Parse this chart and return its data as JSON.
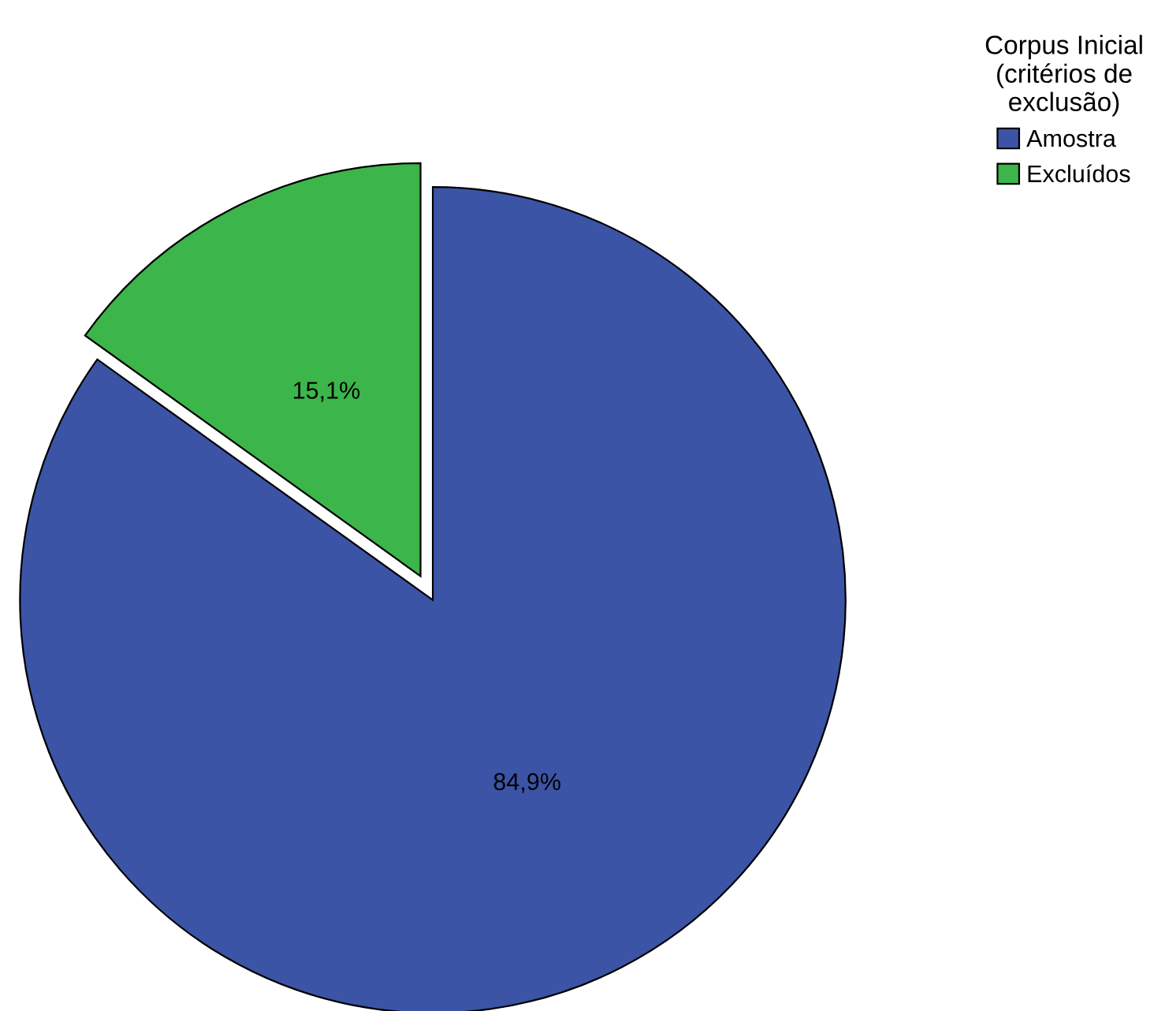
{
  "chart_data": {
    "type": "pie",
    "legend_title": "Corpus Inicial\n(critérios de\nexclusão)",
    "categories": [
      "Amostra",
      "Excluídos"
    ],
    "values": [
      84.9,
      15.1
    ],
    "colors": [
      "#3c54a6",
      "#3cb54a"
    ],
    "value_labels": [
      "84,9%",
      "15,1%"
    ],
    "legend": "top right"
  }
}
